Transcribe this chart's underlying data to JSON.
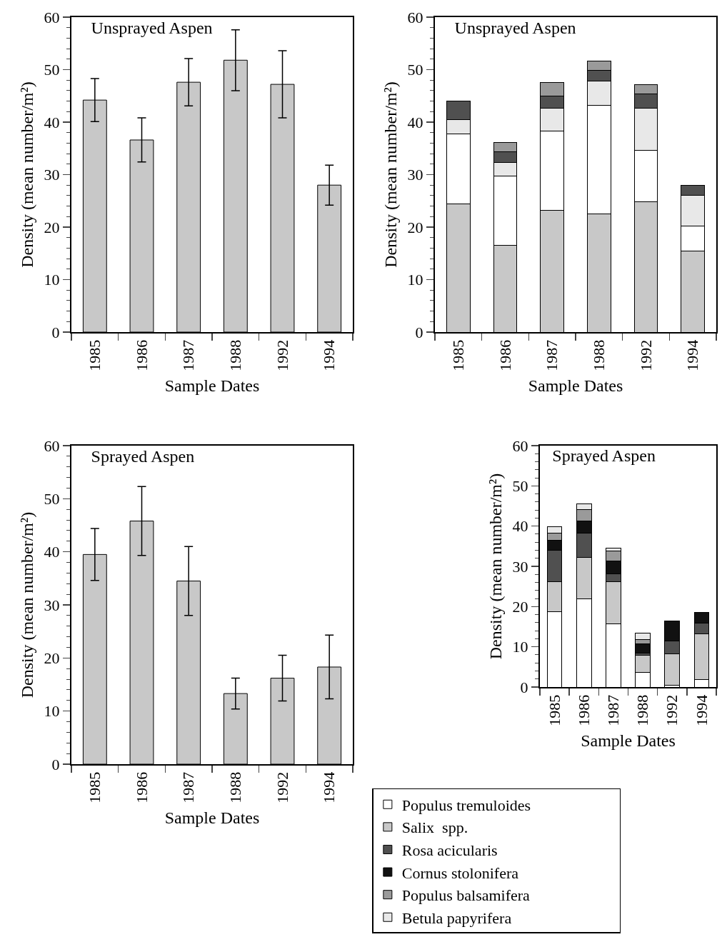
{
  "chart_data": [
    {
      "type": "bar",
      "title": "Unsprayed Aspen",
      "xlabel": "Sample Dates",
      "ylabel": "Density (mean number/m²)",
      "categories": [
        "1985",
        "1986",
        "1987",
        "1988",
        "1992",
        "1994"
      ],
      "values": [
        44.2,
        36.6,
        47.6,
        51.8,
        47.2,
        28.0
      ],
      "errors": [
        4.1,
        4.2,
        4.5,
        5.8,
        6.4,
        3.8
      ],
      "color": "#c8c8c8",
      "ylim": [
        0,
        60
      ],
      "yticks": [
        0,
        10,
        20,
        30,
        40,
        50,
        60
      ]
    },
    {
      "type": "bar",
      "stacked": true,
      "title": "Unsprayed Aspen",
      "xlabel": "Sample Dates",
      "ylabel": "Density (mean number/m²)",
      "categories": [
        "1985",
        "1986",
        "1987",
        "1988",
        "1992",
        "1994"
      ],
      "ylim": [
        0,
        60
      ],
      "yticks": [
        0,
        10,
        20,
        30,
        40,
        50,
        60
      ],
      "series": [
        {
          "color": "#c8c8c8",
          "values": [
            24.4,
            16.5,
            23.2,
            22.5,
            24.8,
            15.4
          ]
        },
        {
          "color": "#ffffff",
          "values": [
            13.3,
            13.2,
            15.1,
            20.7,
            9.8,
            4.8
          ]
        },
        {
          "color": "#e8e8e8",
          "values": [
            2.8,
            2.6,
            4.4,
            4.6,
            8.1,
            5.9
          ]
        },
        {
          "color": "#505050",
          "values": [
            3.5,
            2.0,
            2.2,
            2.0,
            2.7,
            1.8
          ]
        },
        {
          "color": "#9a9a9a",
          "values": [
            null,
            1.8,
            2.6,
            1.9,
            1.7,
            null
          ]
        }
      ]
    },
    {
      "type": "bar",
      "title": "Sprayed Aspen",
      "xlabel": "Sample Dates",
      "ylabel": "Density (mean number/m²)",
      "categories": [
        "1985",
        "1986",
        "1987",
        "1988",
        "1992",
        "1994"
      ],
      "values": [
        39.5,
        45.8,
        34.5,
        13.3,
        16.2,
        18.3
      ],
      "errors": [
        4.9,
        6.5,
        6.5,
        2.9,
        4.3,
        6.0
      ],
      "color": "#c8c8c8",
      "ylim": [
        0,
        60
      ],
      "yticks": [
        0,
        10,
        20,
        30,
        40,
        50,
        60
      ]
    },
    {
      "type": "bar",
      "stacked": true,
      "legend": "bottom",
      "title": "Sprayed Aspen",
      "xlabel": "Sample Dates",
      "ylabel": "Density (mean number/m²)",
      "categories": [
        "1985",
        "1986",
        "1987",
        "1988",
        "1992",
        "1994"
      ],
      "ylim": [
        0,
        60
      ],
      "yticks": [
        0,
        10,
        20,
        30,
        40,
        50,
        60
      ],
      "series": [
        {
          "name": "Populus tremuloides",
          "color": "#ffffff",
          "values": [
            18.7,
            22.0,
            15.7,
            3.7,
            0.5,
            1.8
          ]
        },
        {
          "name": "Salix  spp.",
          "color": "#c8c8c8",
          "values": [
            7.4,
            10.2,
            10.4,
            4.2,
            7.7,
            11.5
          ]
        },
        {
          "name": "Rosa acicularis",
          "color": "#505050",
          "values": [
            7.9,
            6.0,
            2.1,
            0.6,
            3.2,
            2.6
          ]
        },
        {
          "name": "Cornus stolonifera",
          "color": "#111111",
          "values": [
            2.4,
            3.1,
            3.1,
            2.2,
            5.1,
            2.7
          ]
        },
        {
          "name": "Populus balsamifera",
          "color": "#9a9a9a",
          "values": [
            1.8,
            2.9,
            2.6,
            1.1,
            null,
            null
          ]
        },
        {
          "name": "Betula papyrifera",
          "color": "#e8e8e8",
          "values": [
            1.6,
            1.4,
            0.7,
            1.6,
            null,
            null
          ]
        }
      ]
    }
  ]
}
